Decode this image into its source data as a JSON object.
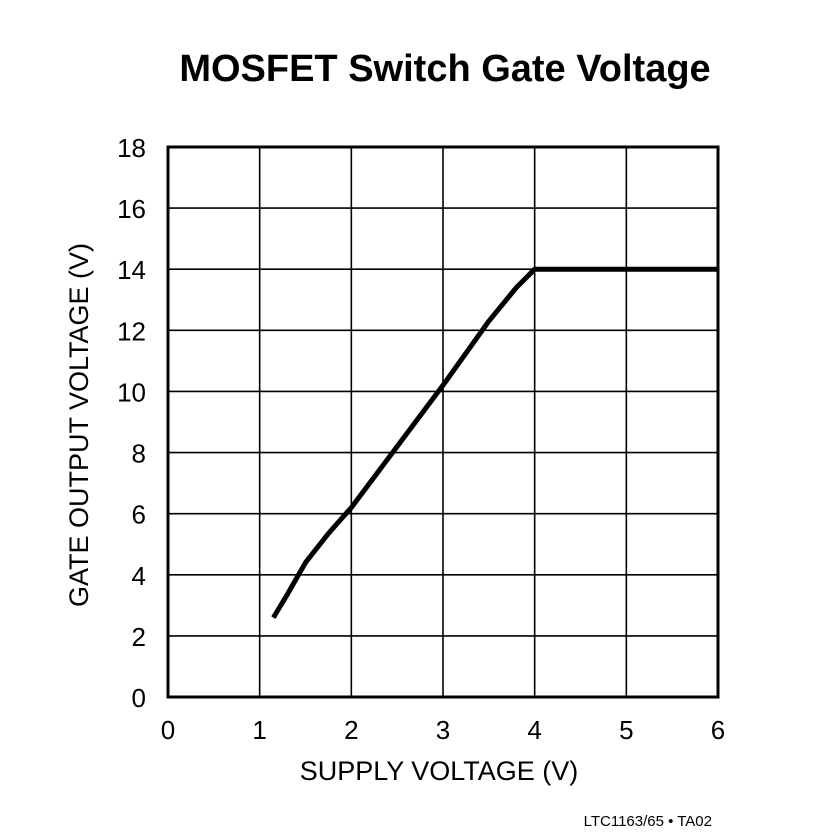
{
  "chart_data": {
    "type": "line",
    "title": "MOSFET Switch Gate Voltage",
    "xlabel": "SUPPLY VOLTAGE (V)",
    "ylabel": "GATE OUTPUT VOLTAGE (V)",
    "xlim": [
      0,
      6
    ],
    "ylim": [
      0,
      18
    ],
    "xticks": [
      0,
      1,
      2,
      3,
      4,
      5,
      6
    ],
    "yticks": [
      0,
      2,
      4,
      6,
      8,
      10,
      12,
      14,
      16,
      18
    ],
    "grid": true,
    "legend": "none",
    "series": [
      {
        "color": "#000000",
        "x": [
          1.15,
          1.3,
          1.5,
          1.75,
          2.0,
          2.5,
          3.0,
          3.5,
          3.8,
          4.0,
          5.0,
          6.0
        ],
        "y": [
          2.6,
          3.35,
          4.4,
          5.35,
          6.2,
          8.2,
          10.2,
          12.3,
          13.4,
          14.0,
          14.0,
          14.0
        ]
      }
    ]
  },
  "footnote": "LTC1163/65 • TA02"
}
